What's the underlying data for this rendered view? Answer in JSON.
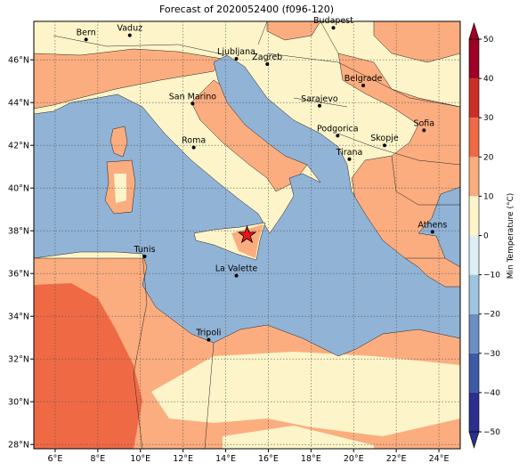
{
  "chart_data": {
    "type": "map",
    "title": "Forecast of 2020052400 (f096-120)",
    "xlim": [
      5,
      25
    ],
    "ylim": [
      27.8,
      47.8
    ],
    "xticks": [
      {
        "value": 6,
        "label": "6°E"
      },
      {
        "value": 8,
        "label": "8°E"
      },
      {
        "value": 10,
        "label": "10°E"
      },
      {
        "value": 12,
        "label": "12°E"
      },
      {
        "value": 14,
        "label": "14°E"
      },
      {
        "value": 16,
        "label": "16°E"
      },
      {
        "value": 18,
        "label": "18°E"
      },
      {
        "value": 20,
        "label": "20°E"
      },
      {
        "value": 22,
        "label": "22°E"
      },
      {
        "value": 24,
        "label": "24°E"
      }
    ],
    "yticks": [
      {
        "value": 28,
        "label": "28°N"
      },
      {
        "value": 30,
        "label": "30°N"
      },
      {
        "value": 32,
        "label": "32°N"
      },
      {
        "value": 34,
        "label": "34°N"
      },
      {
        "value": 36,
        "label": "36°N"
      },
      {
        "value": 38,
        "label": "38°N"
      },
      {
        "value": 40,
        "label": "40°N"
      },
      {
        "value": 42,
        "label": "42°N"
      },
      {
        "value": 44,
        "label": "44°N"
      },
      {
        "value": 46,
        "label": "46°N"
      }
    ],
    "grid": true,
    "cities": [
      {
        "name": "Bern",
        "lon": 7.45,
        "lat": 46.95
      },
      {
        "name": "Vaduz",
        "lon": 9.5,
        "lat": 47.15
      },
      {
        "name": "Budapest",
        "lon": 19.05,
        "lat": 47.5
      },
      {
        "name": "Ljubljana",
        "lon": 14.5,
        "lat": 46.05
      },
      {
        "name": "Zagreb",
        "lon": 15.95,
        "lat": 45.8
      },
      {
        "name": "Belgrade",
        "lon": 20.45,
        "lat": 44.8
      },
      {
        "name": "San Marino",
        "lon": 12.45,
        "lat": 43.95
      },
      {
        "name": "Sarajevo",
        "lon": 18.4,
        "lat": 43.85
      },
      {
        "name": "Sofia",
        "lon": 23.3,
        "lat": 42.7
      },
      {
        "name": "Podgorica",
        "lon": 19.25,
        "lat": 42.45
      },
      {
        "name": "Skopje",
        "lon": 21.45,
        "lat": 42.0
      },
      {
        "name": "Roma",
        "lon": 12.5,
        "lat": 41.9
      },
      {
        "name": "Tirana",
        "lon": 19.8,
        "lat": 41.35
      },
      {
        "name": "Athens",
        "lon": 23.7,
        "lat": 37.95
      },
      {
        "name": "Tunis",
        "lon": 10.2,
        "lat": 36.8
      },
      {
        "name": "La Valette",
        "lon": 14.5,
        "lat": 35.9
      },
      {
        "name": "Tripoli",
        "lon": 13.2,
        "lat": 32.9
      }
    ],
    "marker": {
      "lon": 15.0,
      "lat": 37.8,
      "color": "#e8141b"
    },
    "colorbar": {
      "label": "Min Temperature (°C)",
      "ticks": [
        {
          "value": -50,
          "label": "−50"
        },
        {
          "value": -40,
          "label": "−40"
        },
        {
          "value": -30,
          "label": "−30"
        },
        {
          "value": -20,
          "label": "−20"
        },
        {
          "value": -10,
          "label": "−10"
        },
        0,
        10,
        20,
        30,
        40,
        50
      ],
      "colors": [
        "#2b2f8f",
        "#3d5aa6",
        "#6a8fc2",
        "#9fc4e0",
        "#dbeff5",
        "#fdf5c9",
        "#fbad7f",
        "#ef6a44",
        "#cc2f27",
        "#9e0026"
      ]
    }
  }
}
